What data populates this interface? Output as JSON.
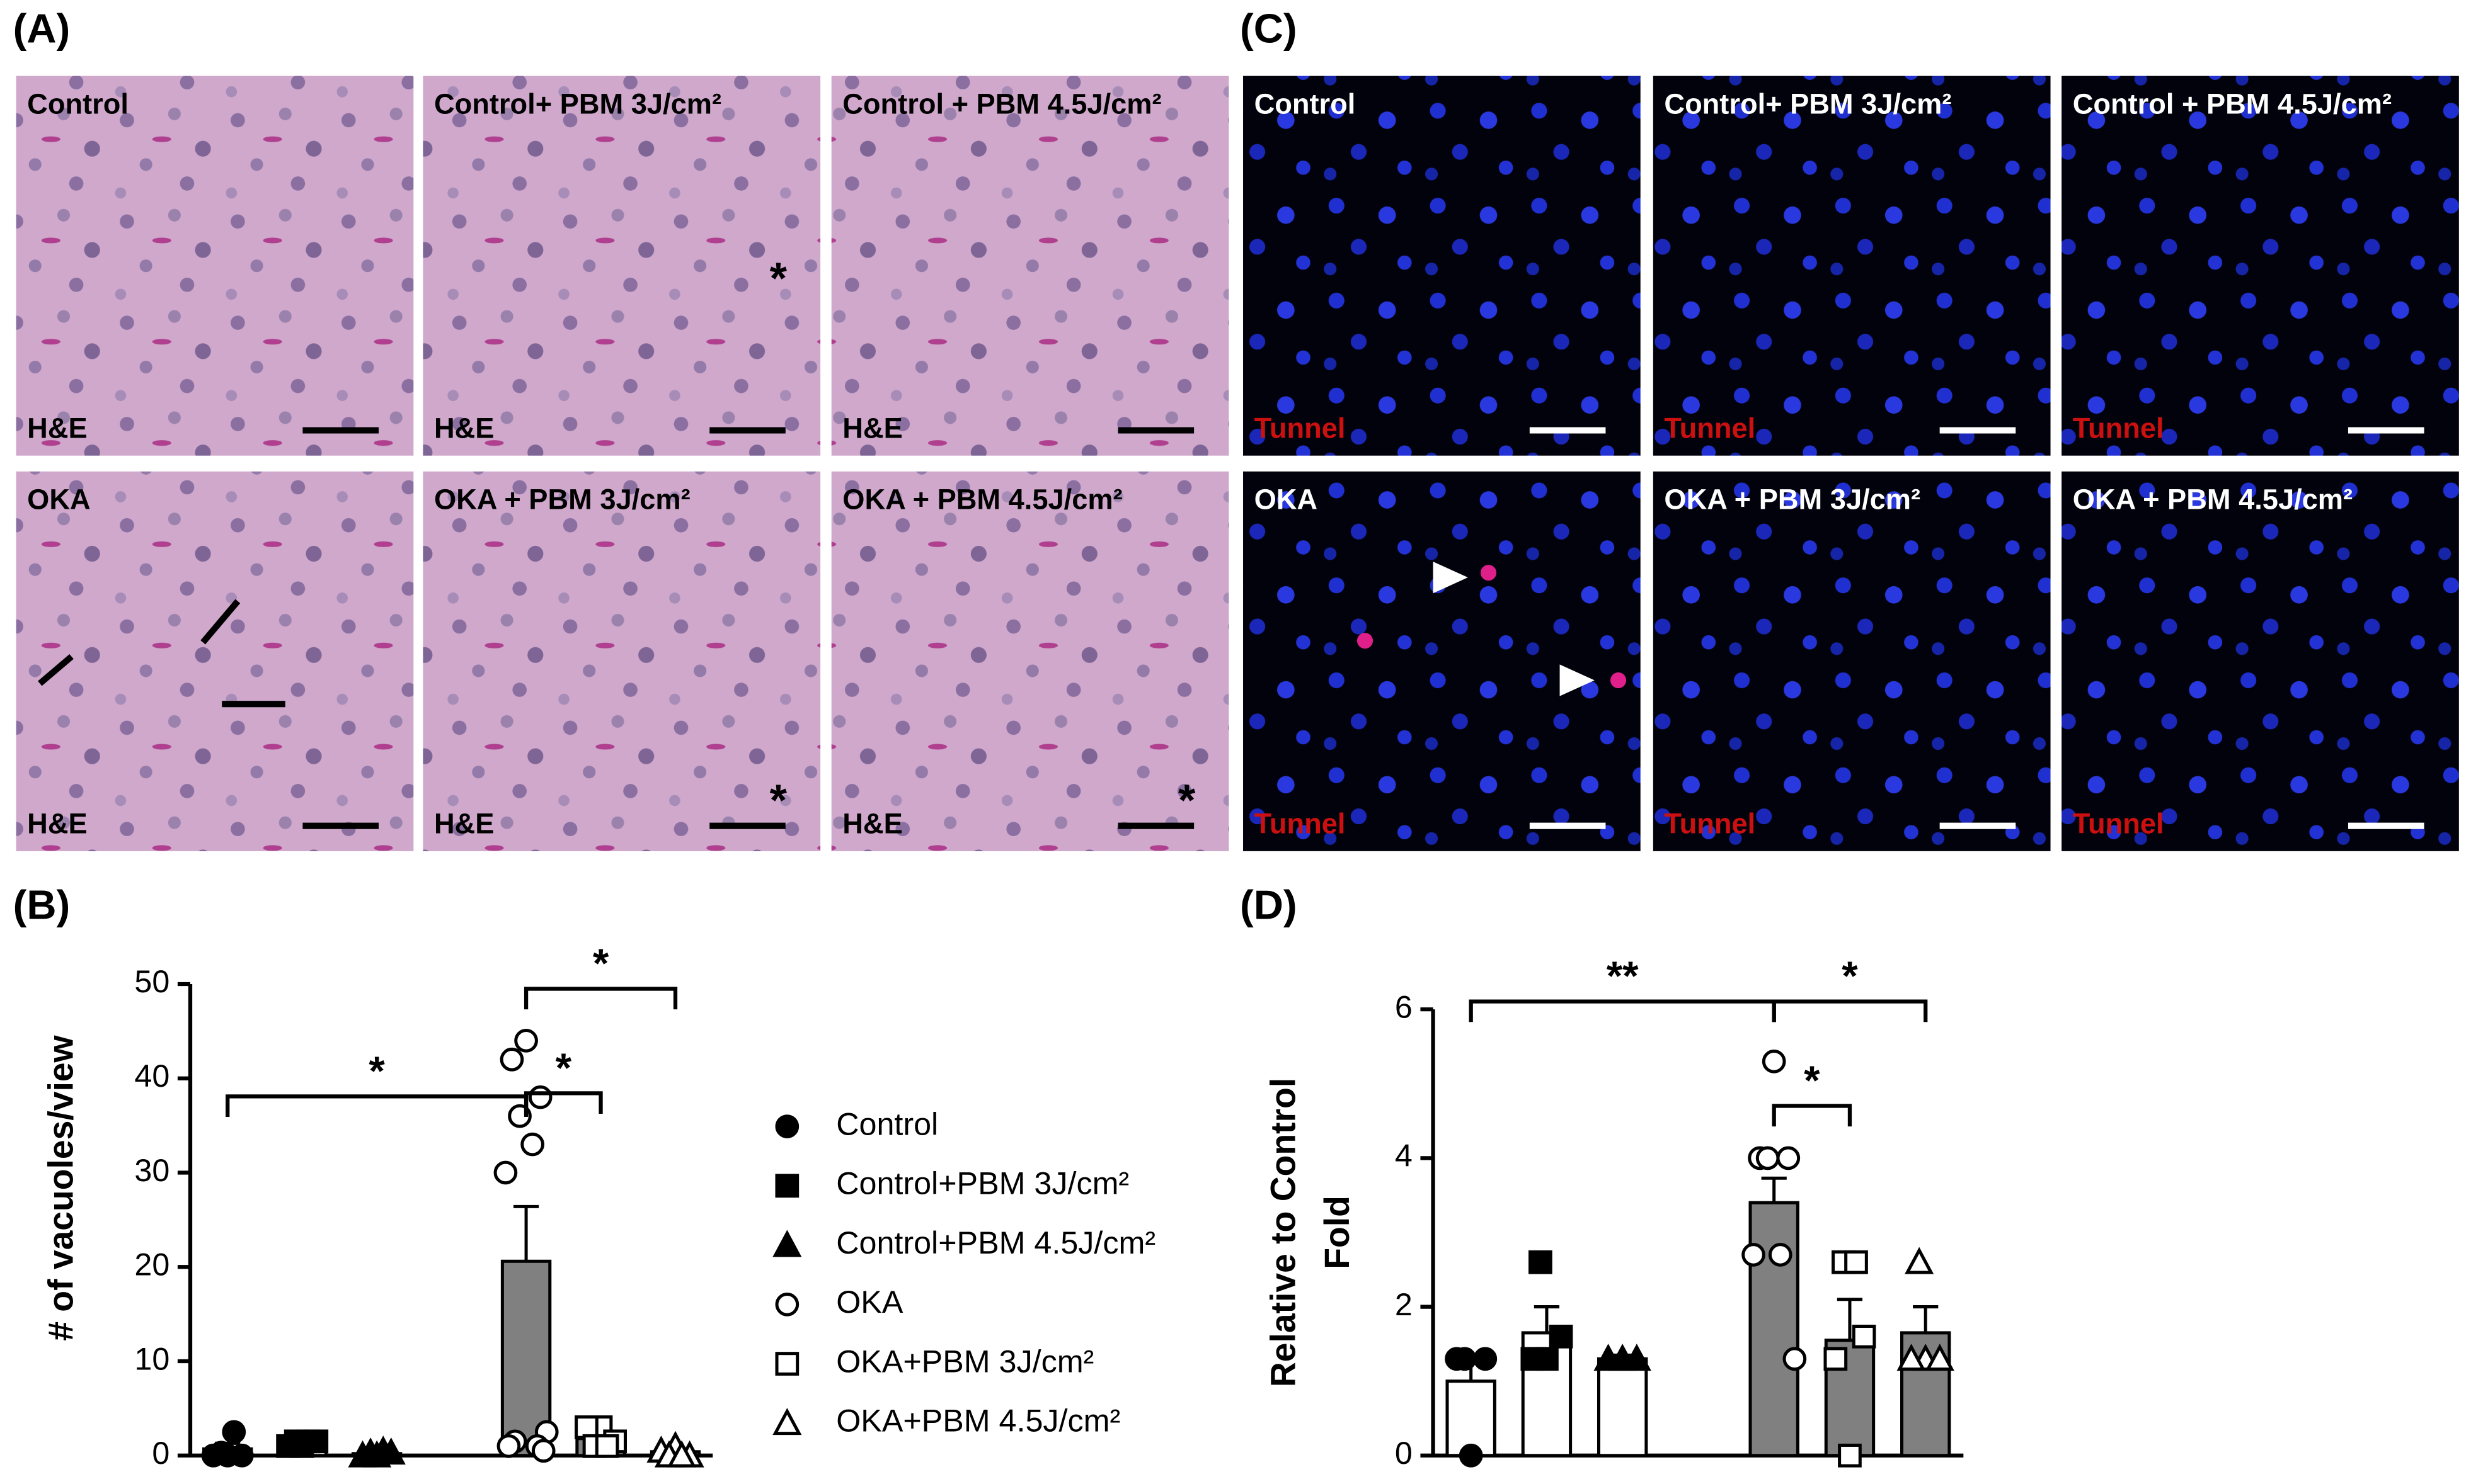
{
  "panels": {
    "A": "(A)",
    "B": "(B)",
    "C": "(C)",
    "D": "(D)"
  },
  "he_images": [
    {
      "label": "Control",
      "stain": "H&E"
    },
    {
      "label": "Control+ PBM 3J/cm²",
      "stain": "H&E",
      "mark": "*"
    },
    {
      "label": "Control + PBM 4.5J/cm²",
      "stain": "H&E"
    },
    {
      "label": "OKA",
      "stain": "H&E"
    },
    {
      "label": "OKA + PBM 3J/cm²",
      "stain": "H&E",
      "mark": "*"
    },
    {
      "label": "OKA + PBM 4.5J/cm²",
      "stain": "H&E",
      "mark": "*"
    }
  ],
  "tunel_images": [
    {
      "label": "Control",
      "stain": "Tunnel"
    },
    {
      "label": "Control+ PBM 3J/cm²",
      "stain": "Tunnel"
    },
    {
      "label": "Control + PBM 4.5J/cm²",
      "stain": "Tunnel"
    },
    {
      "label": "OKA",
      "stain": "Tunnel"
    },
    {
      "label": "OKA + PBM 3J/cm²",
      "stain": "Tunnel"
    },
    {
      "label": "OKA + PBM 4.5J/cm²",
      "stain": "Tunnel"
    }
  ],
  "chart_data": [
    {
      "type": "bar",
      "ylabel": "# of vacuoles/view",
      "ylim": [
        0,
        50
      ],
      "yticks": [
        0,
        10,
        20,
        30,
        40,
        50
      ],
      "legend": "right",
      "series": [
        {
          "name": "Control",
          "color": "#ffffff",
          "marker": "circle",
          "marker_fill": "#000000",
          "mean": 0.7,
          "error": 0.6,
          "points": [
            0,
            0,
            0,
            0.3,
            2.5
          ]
        },
        {
          "name": "Control+PBM 3J/cm²",
          "color": "#ffffff",
          "marker": "square",
          "marker_fill": "#000000",
          "mean": 1.3,
          "error": 0.3,
          "points": [
            1,
            1,
            1.5,
            1.5,
            1.5
          ]
        },
        {
          "name": "Control+PBM 4.5J/cm²",
          "color": "#ffffff",
          "marker": "triangle",
          "marker_fill": "#000000",
          "mean": 0.2,
          "error": 0.1,
          "points": [
            0,
            0,
            0.3,
            0.3,
            0.5
          ]
        },
        {
          "name": "OKA",
          "color": "#808080",
          "marker": "circle",
          "marker_fill": "#ffffff",
          "mean": 20.6,
          "error": 5.8,
          "points": [
            44,
            42,
            38,
            36,
            33,
            30,
            2.5,
            1.5,
            1,
            1,
            0.5
          ]
        },
        {
          "name": "OKA+PBM 3J/cm²",
          "color": "#808080",
          "marker": "square",
          "marker_fill": "#ffffff",
          "mean": 1.8,
          "error": 0.6,
          "points": [
            3,
            3,
            1.5,
            1,
            1
          ]
        },
        {
          "name": "OKA+PBM 4.5J/cm²",
          "color": "#808080",
          "marker": "triangle",
          "marker_fill": "#ffffff",
          "mean": 0.4,
          "error": 0.3,
          "points": [
            1,
            0.5,
            0,
            0,
            0
          ]
        }
      ],
      "significance": [
        {
          "from": 0,
          "to": 3,
          "label": "*"
        },
        {
          "from": 3,
          "to": 4,
          "label": "*"
        },
        {
          "from": 3,
          "to": 5,
          "label": "*"
        }
      ]
    },
    {
      "type": "bar",
      "ylabel": [
        "Relative to Control",
        "Fold"
      ],
      "ylim": [
        0,
        6
      ],
      "yticks": [
        0,
        2,
        4,
        6
      ],
      "series": [
        {
          "color": "#ffffff",
          "marker": "circle",
          "marker_fill": "#000000",
          "mean": 1.0,
          "error": 0.3,
          "points": [
            0,
            1.3,
            1.3,
            1.3
          ]
        },
        {
          "color": "#ffffff",
          "marker": "square",
          "marker_fill": "#000000",
          "mean": 1.65,
          "error": 0.35,
          "points": [
            1.3,
            1.3,
            1.6,
            2.6
          ]
        },
        {
          "color": "#ffffff",
          "marker": "triangle",
          "marker_fill": "#000000",
          "mean": 1.3,
          "error": 0.05,
          "points": [
            1.3,
            1.3,
            1.3
          ]
        },
        {
          "color": "#808080",
          "marker": "circle",
          "marker_fill": "#ffffff",
          "mean": 3.4,
          "error": 0.33,
          "points": [
            5.3,
            4,
            4,
            4,
            2.7,
            2.7,
            1.3
          ]
        },
        {
          "color": "#808080",
          "marker": "square",
          "marker_fill": "#ffffff",
          "mean": 1.55,
          "error": 0.55,
          "points": [
            0,
            1.3,
            1.6,
            2.6,
            2.6
          ]
        },
        {
          "color": "#808080",
          "marker": "triangle",
          "marker_fill": "#ffffff",
          "mean": 1.65,
          "error": 0.35,
          "points": [
            1.3,
            1.3,
            1.3,
            2.6
          ]
        }
      ],
      "significance": [
        {
          "from": 0,
          "to": 3,
          "label": "**"
        },
        {
          "from": 3,
          "to": 4,
          "label": "*"
        },
        {
          "from": 3,
          "to": 5,
          "label": "*"
        }
      ]
    }
  ]
}
